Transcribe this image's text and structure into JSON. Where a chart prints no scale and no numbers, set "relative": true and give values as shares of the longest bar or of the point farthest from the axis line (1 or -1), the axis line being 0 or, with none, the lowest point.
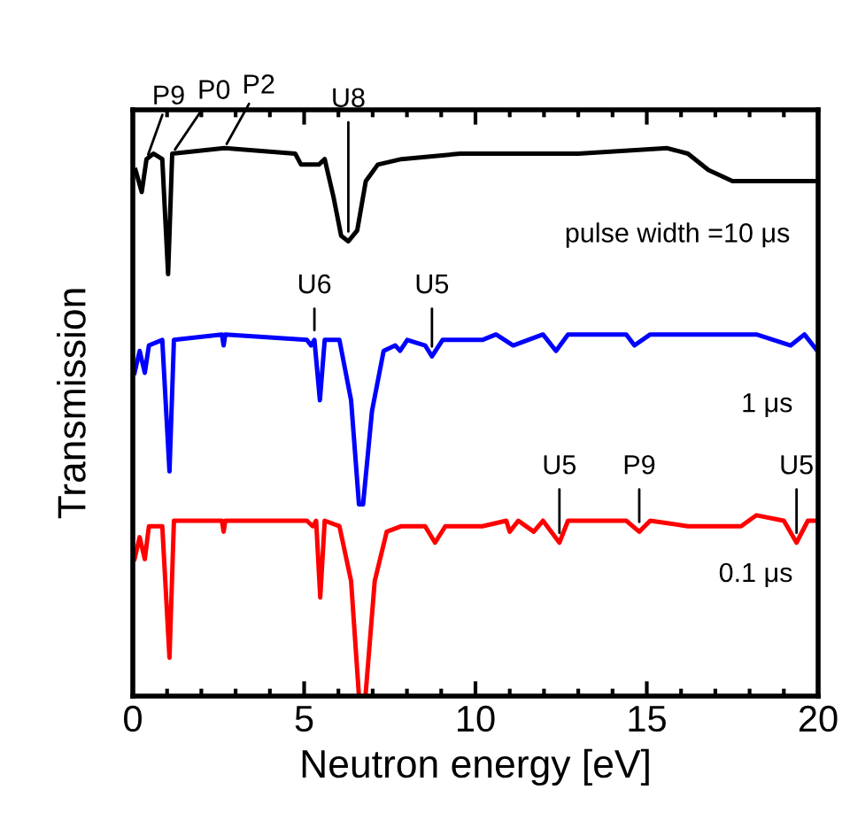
{
  "chart_data": {
    "type": "line",
    "relative": true,
    "xlabel": "Neutron energy [eV]",
    "ylabel": "Transmission",
    "xlim": [
      0,
      20
    ],
    "xticks": [
      0,
      5,
      10,
      15,
      20
    ],
    "grid": false,
    "legend": false,
    "marker": "none",
    "line_style": "solid",
    "series": [
      {
        "color": "#000000",
        "x": [
          0.08,
          0.26,
          0.4,
          0.6,
          0.86,
          1.03,
          1.15,
          2.67,
          4.74,
          4.91,
          5.43,
          5.6,
          5.86,
          6.08,
          6.29,
          6.55,
          6.8,
          7.15,
          7.84,
          9.56,
          13.0,
          15.6,
          16.2,
          16.8,
          17.5,
          19.9
        ],
        "values": [
          0.96,
          0.92,
          0.98,
          0.99,
          0.98,
          0.77,
          0.99,
          1.0,
          0.99,
          0.97,
          0.97,
          0.98,
          0.91,
          0.84,
          0.83,
          0.85,
          0.94,
          0.97,
          0.98,
          0.99,
          0.99,
          1.0,
          0.99,
          0.96,
          0.94,
          0.94
        ]
      },
      {
        "color": "#0000ff",
        "x": [
          0.05,
          0.2,
          0.35,
          0.47,
          0.86,
          1.07,
          1.2,
          2.6,
          2.65,
          2.7,
          5.08,
          5.2,
          5.3,
          5.46,
          5.6,
          6.03,
          6.37,
          6.6,
          6.72,
          6.98,
          7.32,
          7.66,
          7.8,
          8.01,
          8.53,
          8.73,
          9.04,
          10.2,
          10.6,
          11.1,
          11.97,
          12.35,
          12.7,
          14.4,
          14.64,
          15.1,
          18.2,
          18.7,
          19.2,
          19.6,
          19.98
        ],
        "values": [
          0.59,
          0.63,
          0.59,
          0.64,
          0.65,
          0.41,
          0.65,
          0.66,
          0.64,
          0.66,
          0.65,
          0.64,
          0.65,
          0.54,
          0.65,
          0.65,
          0.54,
          0.35,
          0.35,
          0.52,
          0.63,
          0.64,
          0.63,
          0.65,
          0.64,
          0.62,
          0.65,
          0.65,
          0.66,
          0.64,
          0.66,
          0.63,
          0.66,
          0.66,
          0.64,
          0.66,
          0.66,
          0.65,
          0.64,
          0.66,
          0.63
        ]
      },
      {
        "color": "#ff0000",
        "x": [
          0.05,
          0.2,
          0.35,
          0.47,
          0.86,
          1.07,
          1.2,
          2.6,
          2.65,
          2.7,
          5.08,
          5.25,
          5.35,
          5.47,
          5.6,
          6.03,
          6.37,
          6.6,
          6.79,
          7.06,
          7.41,
          7.84,
          8.01,
          8.53,
          8.82,
          9.12,
          10.2,
          10.9,
          11.0,
          11.25,
          11.7,
          11.97,
          12.45,
          12.7,
          14.4,
          14.78,
          15.1,
          16.2,
          17.75,
          18.2,
          19.0,
          19.37,
          19.7,
          19.98
        ],
        "values": [
          0.25,
          0.29,
          0.25,
          0.31,
          0.31,
          0.07,
          0.32,
          0.32,
          0.3,
          0.32,
          0.32,
          0.31,
          0.32,
          0.18,
          0.32,
          0.31,
          0.21,
          0.0,
          0.0,
          0.21,
          0.3,
          0.31,
          0.31,
          0.31,
          0.28,
          0.31,
          0.31,
          0.32,
          0.3,
          0.32,
          0.3,
          0.32,
          0.28,
          0.32,
          0.32,
          0.3,
          0.32,
          0.31,
          0.31,
          0.33,
          0.32,
          0.28,
          0.32,
          0.32
        ]
      }
    ],
    "annotations": [
      {
        "text": "P9",
        "x": 0.4,
        "y": 0.98
      },
      {
        "text": "P0",
        "x": 1.15,
        "y": 0.99
      },
      {
        "text": "P2",
        "x": 2.67,
        "y": 1.0
      },
      {
        "text": "U8",
        "x": 6.29,
        "y": 0.83
      },
      {
        "text": "U6",
        "x": 5.3,
        "y": 0.65
      },
      {
        "text": "U5",
        "x": 8.73,
        "y": 0.62
      },
      {
        "text": "U5",
        "x": 12.45,
        "y": 0.28
      },
      {
        "text": "P9",
        "x": 14.78,
        "y": 0.3
      },
      {
        "text": "U5",
        "x": 19.37,
        "y": 0.28
      },
      "pulse width =10 μs",
      "1 μs",
      "0.1 μs"
    ]
  }
}
